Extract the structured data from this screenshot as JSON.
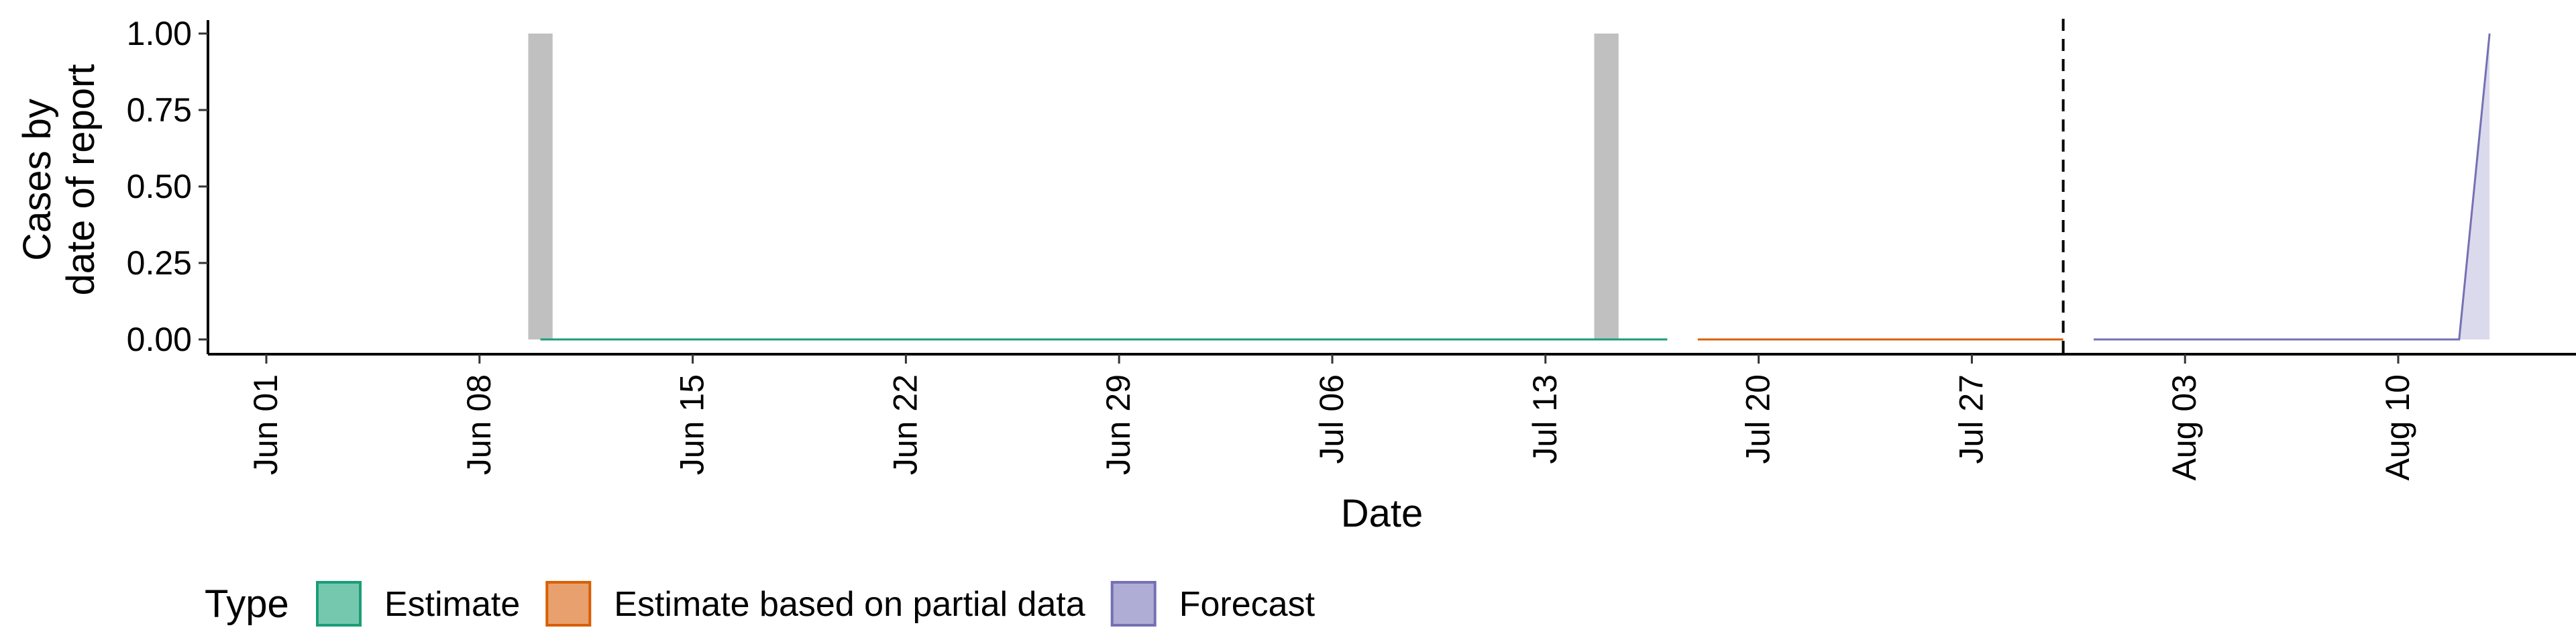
{
  "chart_data": {
    "type": "area",
    "x_axis": {
      "label": "Date",
      "ticks": [
        "Jun 01",
        "Jun 08",
        "Jun 15",
        "Jun 22",
        "Jun 29",
        "Jul 06",
        "Jul 13",
        "Jul 20",
        "Jul 27",
        "Aug 03",
        "Aug 10"
      ]
    },
    "y_axis": {
      "label_lines": [
        "Cases by",
        "date of report"
      ],
      "ticks": [
        "0.00",
        "0.25",
        "0.50",
        "0.75",
        "1.00"
      ],
      "ylim": [
        0,
        1
      ]
    },
    "grid": false,
    "observed_bars": {
      "color": "#c0c0c0",
      "points": [
        {
          "date": "2020-06-10",
          "value": 1
        },
        {
          "date": "2020-07-15",
          "value": 1
        }
      ]
    },
    "series": [
      {
        "name": "Estimate",
        "start": "2020-06-10",
        "end": "2020-07-17",
        "values": [
          [
            "2020-06-10",
            0
          ],
          [
            "2020-07-17",
            0
          ]
        ],
        "fill": "#66c2a5",
        "stroke": "#1b9e77"
      },
      {
        "name": "Estimate based on partial data",
        "start": "2020-07-18",
        "end": "2020-07-30",
        "values": [
          [
            "2020-07-18",
            0
          ],
          [
            "2020-07-30",
            0
          ]
        ],
        "fill": "#e6975e",
        "stroke": "#d95f02"
      },
      {
        "name": "Forecast",
        "start": "2020-07-31",
        "end": "2020-08-13",
        "values": [
          [
            "2020-07-31",
            0
          ],
          [
            "2020-08-12",
            0
          ],
          [
            "2020-08-13",
            1
          ]
        ],
        "fill": "#a6a3d2",
        "stroke": "#7570b3"
      }
    ],
    "vline": {
      "date": "2020-07-30",
      "style": "dashed"
    },
    "legend": {
      "title": "Type",
      "position": "bottom",
      "entries": [
        {
          "label": "Estimate",
          "fill": "#66c2a5",
          "stroke": "#1b9e77"
        },
        {
          "label": "Estimate based on partial data",
          "fill": "#e6975e",
          "stroke": "#d95f02"
        },
        {
          "label": "Forecast",
          "fill": "#a6a3d2",
          "stroke": "#7570b3"
        }
      ]
    }
  }
}
